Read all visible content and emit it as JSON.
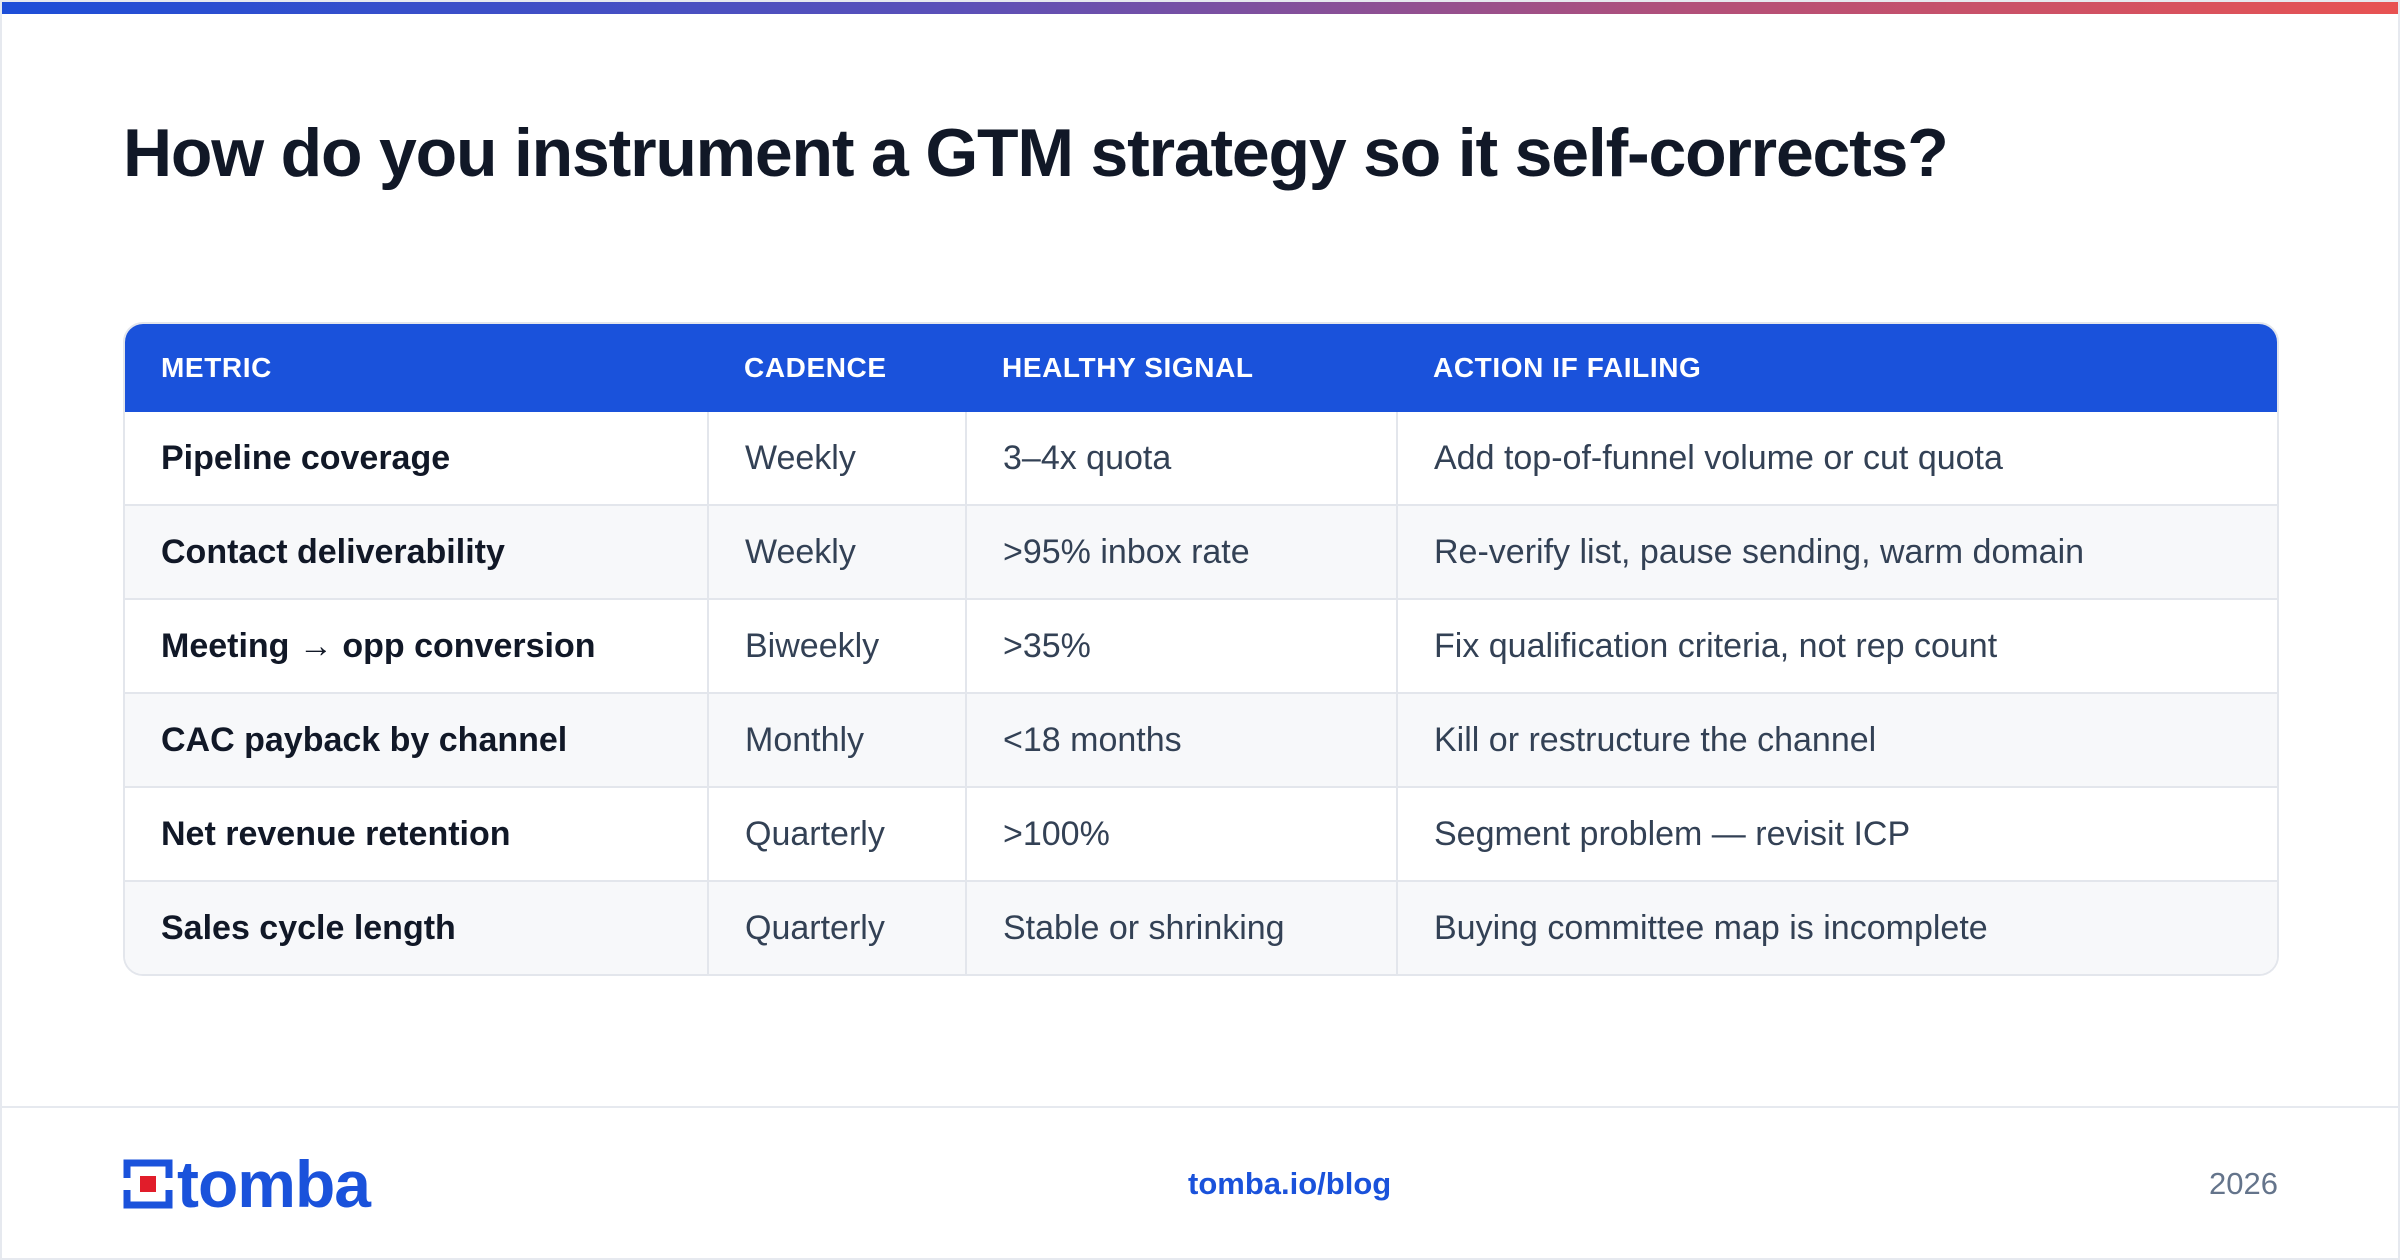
{
  "title": "How do you instrument a GTM strategy so it self-corrects?",
  "table": {
    "headers": [
      "METRIC",
      "CADENCE",
      "HEALTHY SIGNAL",
      "ACTION IF FAILING"
    ],
    "rows": [
      [
        "Pipeline coverage",
        "Weekly",
        "3–4x quota",
        "Add top-of-funnel volume or cut quota"
      ],
      [
        "Contact deliverability",
        "Weekly",
        ">95% inbox rate",
        "Re-verify list, pause sending, warm domain"
      ],
      [
        "Meeting → opp conversion",
        "Biweekly",
        ">35%",
        "Fix qualification criteria, not rep count"
      ],
      [
        "CAC payback by channel",
        "Monthly",
        "<18 months",
        "Kill or restructure the channel"
      ],
      [
        "Net revenue retention",
        "Quarterly",
        ">100%",
        "Segment problem — revisit ICP"
      ],
      [
        "Sales cycle length",
        "Quarterly",
        "Stable or shrinking",
        "Buying committee map is incomplete"
      ]
    ]
  },
  "footer": {
    "logo_text": "tomba",
    "url": "tomba.io/blog",
    "year": "2026"
  },
  "colors": {
    "accent": "#1a52db",
    "logo_red": "#e11d2a"
  }
}
